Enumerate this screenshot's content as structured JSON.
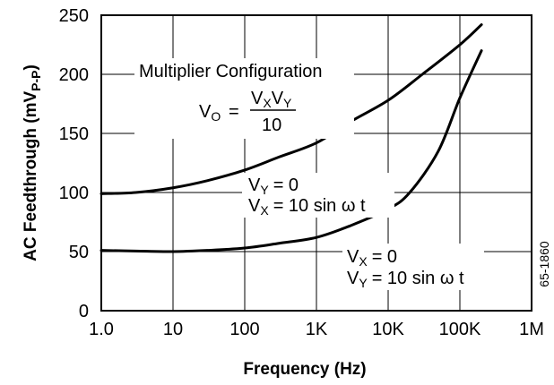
{
  "chart_data": {
    "type": "line",
    "xscale": "log",
    "xlim": [
      1,
      1000000
    ],
    "ylim": [
      0,
      250
    ],
    "xlabel": "Frequency (Hz)",
    "ylabel_main": "AC Feedthrough (mV",
    "ylabel_sub": "P-P",
    "ylabel_close": ")",
    "grid": true,
    "x_ticks": [
      {
        "value": 1,
        "label": "1.0"
      },
      {
        "value": 10,
        "label": "10"
      },
      {
        "value": 100,
        "label": "100"
      },
      {
        "value": 1000,
        "label": "1K"
      },
      {
        "value": 10000,
        "label": "10K"
      },
      {
        "value": 100000,
        "label": "100K"
      },
      {
        "value": 1000000,
        "label": "1M"
      }
    ],
    "y_ticks": [
      {
        "value": 0,
        "label": "0"
      },
      {
        "value": 50,
        "label": "50"
      },
      {
        "value": 100,
        "label": "100"
      },
      {
        "value": 150,
        "label": "150"
      },
      {
        "value": 200,
        "label": "200"
      },
      {
        "value": 250,
        "label": "250"
      }
    ],
    "series": [
      {
        "points": [
          [
            1,
            99
          ],
          [
            3,
            100
          ],
          [
            10,
            104
          ],
          [
            30,
            110
          ],
          [
            100,
            119
          ],
          [
            300,
            130
          ],
          [
            1000,
            142
          ],
          [
            3000,
            160
          ],
          [
            10000,
            178
          ],
          [
            30000,
            200
          ],
          [
            100000,
            225
          ],
          [
            200000,
            242
          ]
        ]
      },
      {
        "points": [
          [
            1,
            51
          ],
          [
            3,
            50.5
          ],
          [
            10,
            50
          ],
          [
            30,
            51
          ],
          [
            100,
            53
          ],
          [
            300,
            57
          ],
          [
            1000,
            62
          ],
          [
            3000,
            72
          ],
          [
            10000,
            86
          ],
          [
            20000,
            100
          ],
          [
            50000,
            135
          ],
          [
            100000,
            180
          ],
          [
            200000,
            220
          ]
        ]
      }
    ],
    "annotations": {
      "config_title": "Multiplier Configuration",
      "formula_lhs": "V",
      "formula_lhs_sub": "O",
      "formula_eq": "=",
      "formula_num_1": "V",
      "formula_num_1_sub": "X",
      "formula_num_2": "V",
      "formula_num_2_sub": "Y",
      "formula_den": "10",
      "upper_line1_var": "V",
      "upper_line1_sub": "Y",
      "upper_line1_rest": "= 0",
      "upper_line2_var": "V",
      "upper_line2_sub": "X",
      "upper_line2_rest": "= 10 sin ω t",
      "lower_line1_var": "V",
      "lower_line1_sub": "X",
      "lower_line1_rest": "= 0",
      "lower_line2_var": "V",
      "lower_line2_sub": "Y",
      "lower_line2_rest": "= 10 sin ω t"
    },
    "figure_id": "65-1860"
  }
}
